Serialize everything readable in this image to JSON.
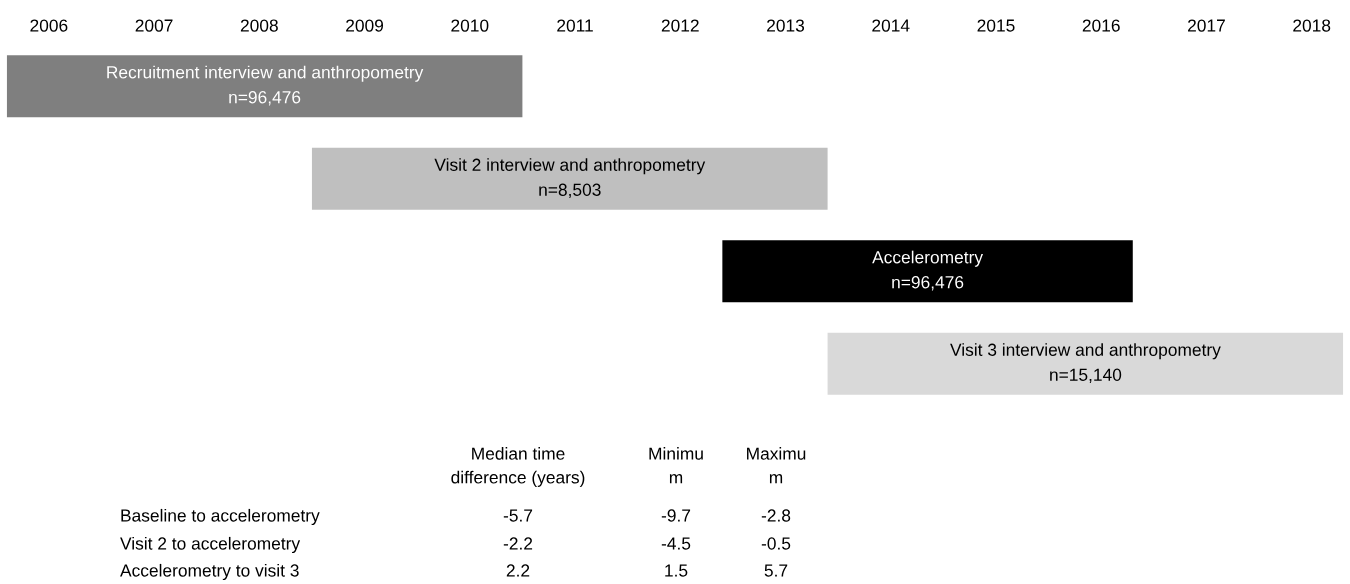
{
  "chart_data": {
    "type": "bar",
    "orientation": "horizontal",
    "categories": [
      "Recruitment interview and anthropometry\nn=96,476",
      "Visit 2 interview and anthropometry\nn=8,503",
      "Accelerometry\nn=96,476",
      "Visit 3 interview and anthropometry\nn=15,140"
    ],
    "base": [
      2005.6,
      2008.5,
      2012.4,
      2013.4
    ],
    "values": [
      4.9,
      4.9,
      3.9,
      4.9
    ],
    "colors": [
      "#7f7f7f",
      "#bfbfbf",
      "#000000",
      "#d9d9d9"
    ],
    "xlim": [
      2005.6,
      2018.3
    ],
    "xticks": [
      2006,
      2007,
      2008,
      2009,
      2010,
      2011,
      2012,
      2013,
      2014,
      2015,
      2016,
      2017,
      2018
    ],
    "tick_labels": "x",
    "grid": false,
    "legend": false,
    "annotations": [
      "Median time\ndifference (years)",
      "Minimu\nm",
      "Maximu\nm",
      "Baseline to accelerometry",
      "-5.7",
      "-9.7",
      "-2.8",
      "Visit 2 to accelerometry",
      "-2.2",
      "-4.5",
      "-0.5",
      "Accelerometry to visit 3",
      "2.2",
      "1.5",
      "5.7"
    ]
  }
}
